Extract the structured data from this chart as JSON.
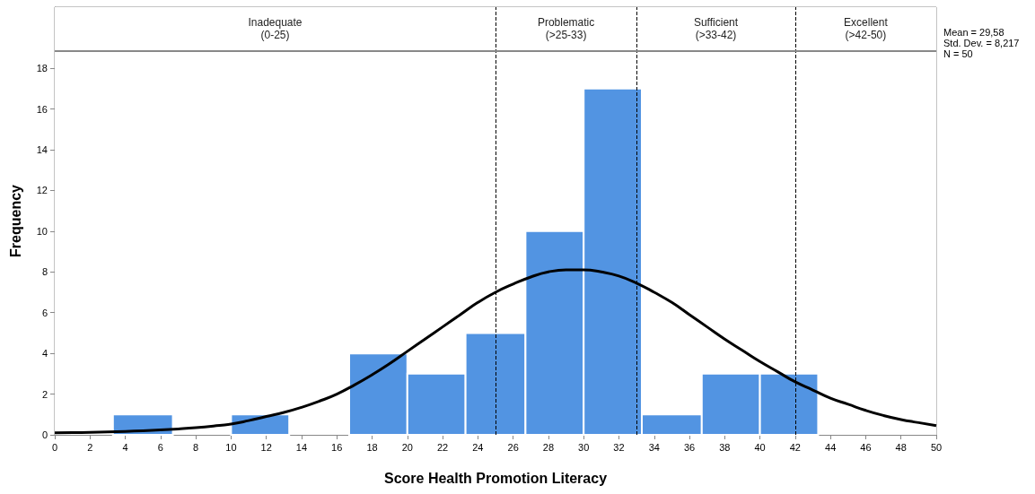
{
  "chart_data": {
    "type": "histogram",
    "xlabel": "Score Health Promotion Literacy",
    "ylabel": "Frequency",
    "xlim": [
      0,
      50
    ],
    "xticks": [
      0,
      2,
      4,
      6,
      8,
      10,
      12,
      14,
      16,
      18,
      20,
      22,
      24,
      26,
      28,
      30,
      32,
      34,
      36,
      38,
      40,
      42,
      44,
      46,
      48,
      50
    ],
    "ylim": [
      0,
      21
    ],
    "yticks": [
      0,
      2,
      4,
      6,
      8,
      10,
      12,
      14,
      16,
      18
    ],
    "grid": false,
    "series": [
      {
        "color": "#5294e2",
        "bins": [
          3.3,
          6.7,
          10,
          13.3,
          16.7,
          20,
          23.3,
          26.7,
          30,
          33.3,
          36.7,
          40,
          43.3
        ],
        "values": [
          1,
          0,
          1,
          0,
          4,
          3,
          5,
          10,
          17,
          1,
          3,
          3
        ]
      },
      {
        "type": "line",
        "color": "#000000",
        "marker": "none",
        "line_style": "solid",
        "x": [
          0,
          1,
          2,
          3,
          4,
          5,
          6,
          7,
          8,
          9,
          10,
          11,
          12,
          13,
          14,
          15,
          16,
          17,
          18,
          19,
          20,
          21,
          22,
          23,
          24,
          25,
          26,
          27,
          28,
          29,
          30,
          31,
          32,
          33,
          34,
          35,
          36,
          37,
          38,
          39,
          40,
          41,
          42,
          43,
          44,
          45,
          46,
          47,
          48,
          49,
          50
        ],
        "values": [
          0.1,
          0.11,
          0.12,
          0.14,
          0.17,
          0.2,
          0.24,
          0.29,
          0.35,
          0.43,
          0.53,
          0.7,
          0.9,
          1.1,
          1.35,
          1.65,
          2.0,
          2.45,
          2.95,
          3.5,
          4.1,
          4.7,
          5.3,
          5.9,
          6.5,
          7.0,
          7.4,
          7.75,
          8.0,
          8.1,
          8.1,
          8.0,
          7.8,
          7.45,
          7.0,
          6.5,
          5.9,
          5.3,
          4.7,
          4.15,
          3.6,
          3.1,
          2.6,
          2.2,
          1.8,
          1.5,
          1.2,
          0.95,
          0.75,
          0.6,
          0.45
        ]
      }
    ],
    "ref_lines": [
      {
        "axis": "x",
        "value": 25,
        "label": null,
        "color": "#000000",
        "line_style": "dashed"
      },
      {
        "axis": "x",
        "value": 33,
        "label": null,
        "color": "#000000",
        "line_style": "dashed"
      },
      {
        "axis": "x",
        "value": 42,
        "label": null,
        "color": "#000000",
        "line_style": "dashed"
      },
      {
        "axis": "y",
        "value": 18.85,
        "label": null,
        "color": "#888888",
        "line_style": "solid"
      }
    ],
    "bands": [
      {
        "axis": "x",
        "from": 0,
        "to": 25,
        "label": "Inadequate\n(0-25)",
        "color": "#ffffff"
      },
      {
        "axis": "x",
        "from": 25,
        "to": 33,
        "label": "Problematic\n(>25-33)",
        "color": "#ffffff"
      },
      {
        "axis": "x",
        "from": 33,
        "to": 42,
        "label": "Sufficient\n(>33-42)",
        "color": "#ffffff"
      },
      {
        "axis": "x",
        "from": 42,
        "to": 50,
        "label": "Excellent\n(>42-50)",
        "color": "#ffffff"
      }
    ],
    "annotations": [
      "Mean = 29,58",
      "Std. Dev. = 8,217",
      "N = 50"
    ]
  }
}
